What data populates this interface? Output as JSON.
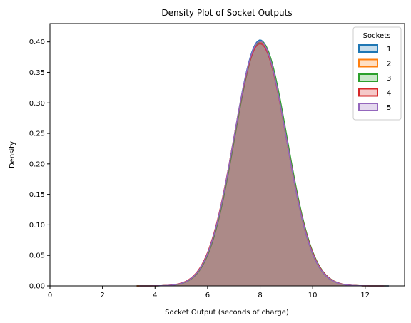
{
  "chart_data": {
    "type": "area",
    "title": "Density Plot of Socket Outputs",
    "xlabel": "Socket Output (seconds of charge)",
    "ylabel": "Density",
    "xlim": [
      0,
      13.5
    ],
    "ylim": [
      0,
      0.43
    ],
    "xticks": [
      0,
      2,
      4,
      6,
      8,
      10,
      12
    ],
    "yticks": [
      0.0,
      0.05,
      0.1,
      0.15,
      0.2,
      0.25,
      0.3,
      0.35,
      0.4
    ],
    "grid": false,
    "legend": {
      "title": "Sockets",
      "placement": "top-right"
    },
    "series": [
      {
        "name": "1",
        "color": "#1f77b4",
        "mean": 8.0,
        "sd": 0.99,
        "x_range": [
          3.3,
          12.9
        ]
      },
      {
        "name": "2",
        "color": "#ff7f0e",
        "mean": 8.0,
        "sd": 1.0,
        "x_range": [
          3.3,
          12.8
        ]
      },
      {
        "name": "3",
        "color": "#2ca02c",
        "mean": 8.03,
        "sd": 0.995,
        "x_range": [
          3.3,
          12.9
        ]
      },
      {
        "name": "4",
        "color": "#d62728",
        "mean": 8.0,
        "sd": 1.005,
        "x_range": [
          3.3,
          12.7
        ]
      },
      {
        "name": "5",
        "color": "#9467bd",
        "mean": 8.0,
        "sd": 0.995,
        "x_range": [
          3.4,
          12.9
        ]
      }
    ]
  }
}
